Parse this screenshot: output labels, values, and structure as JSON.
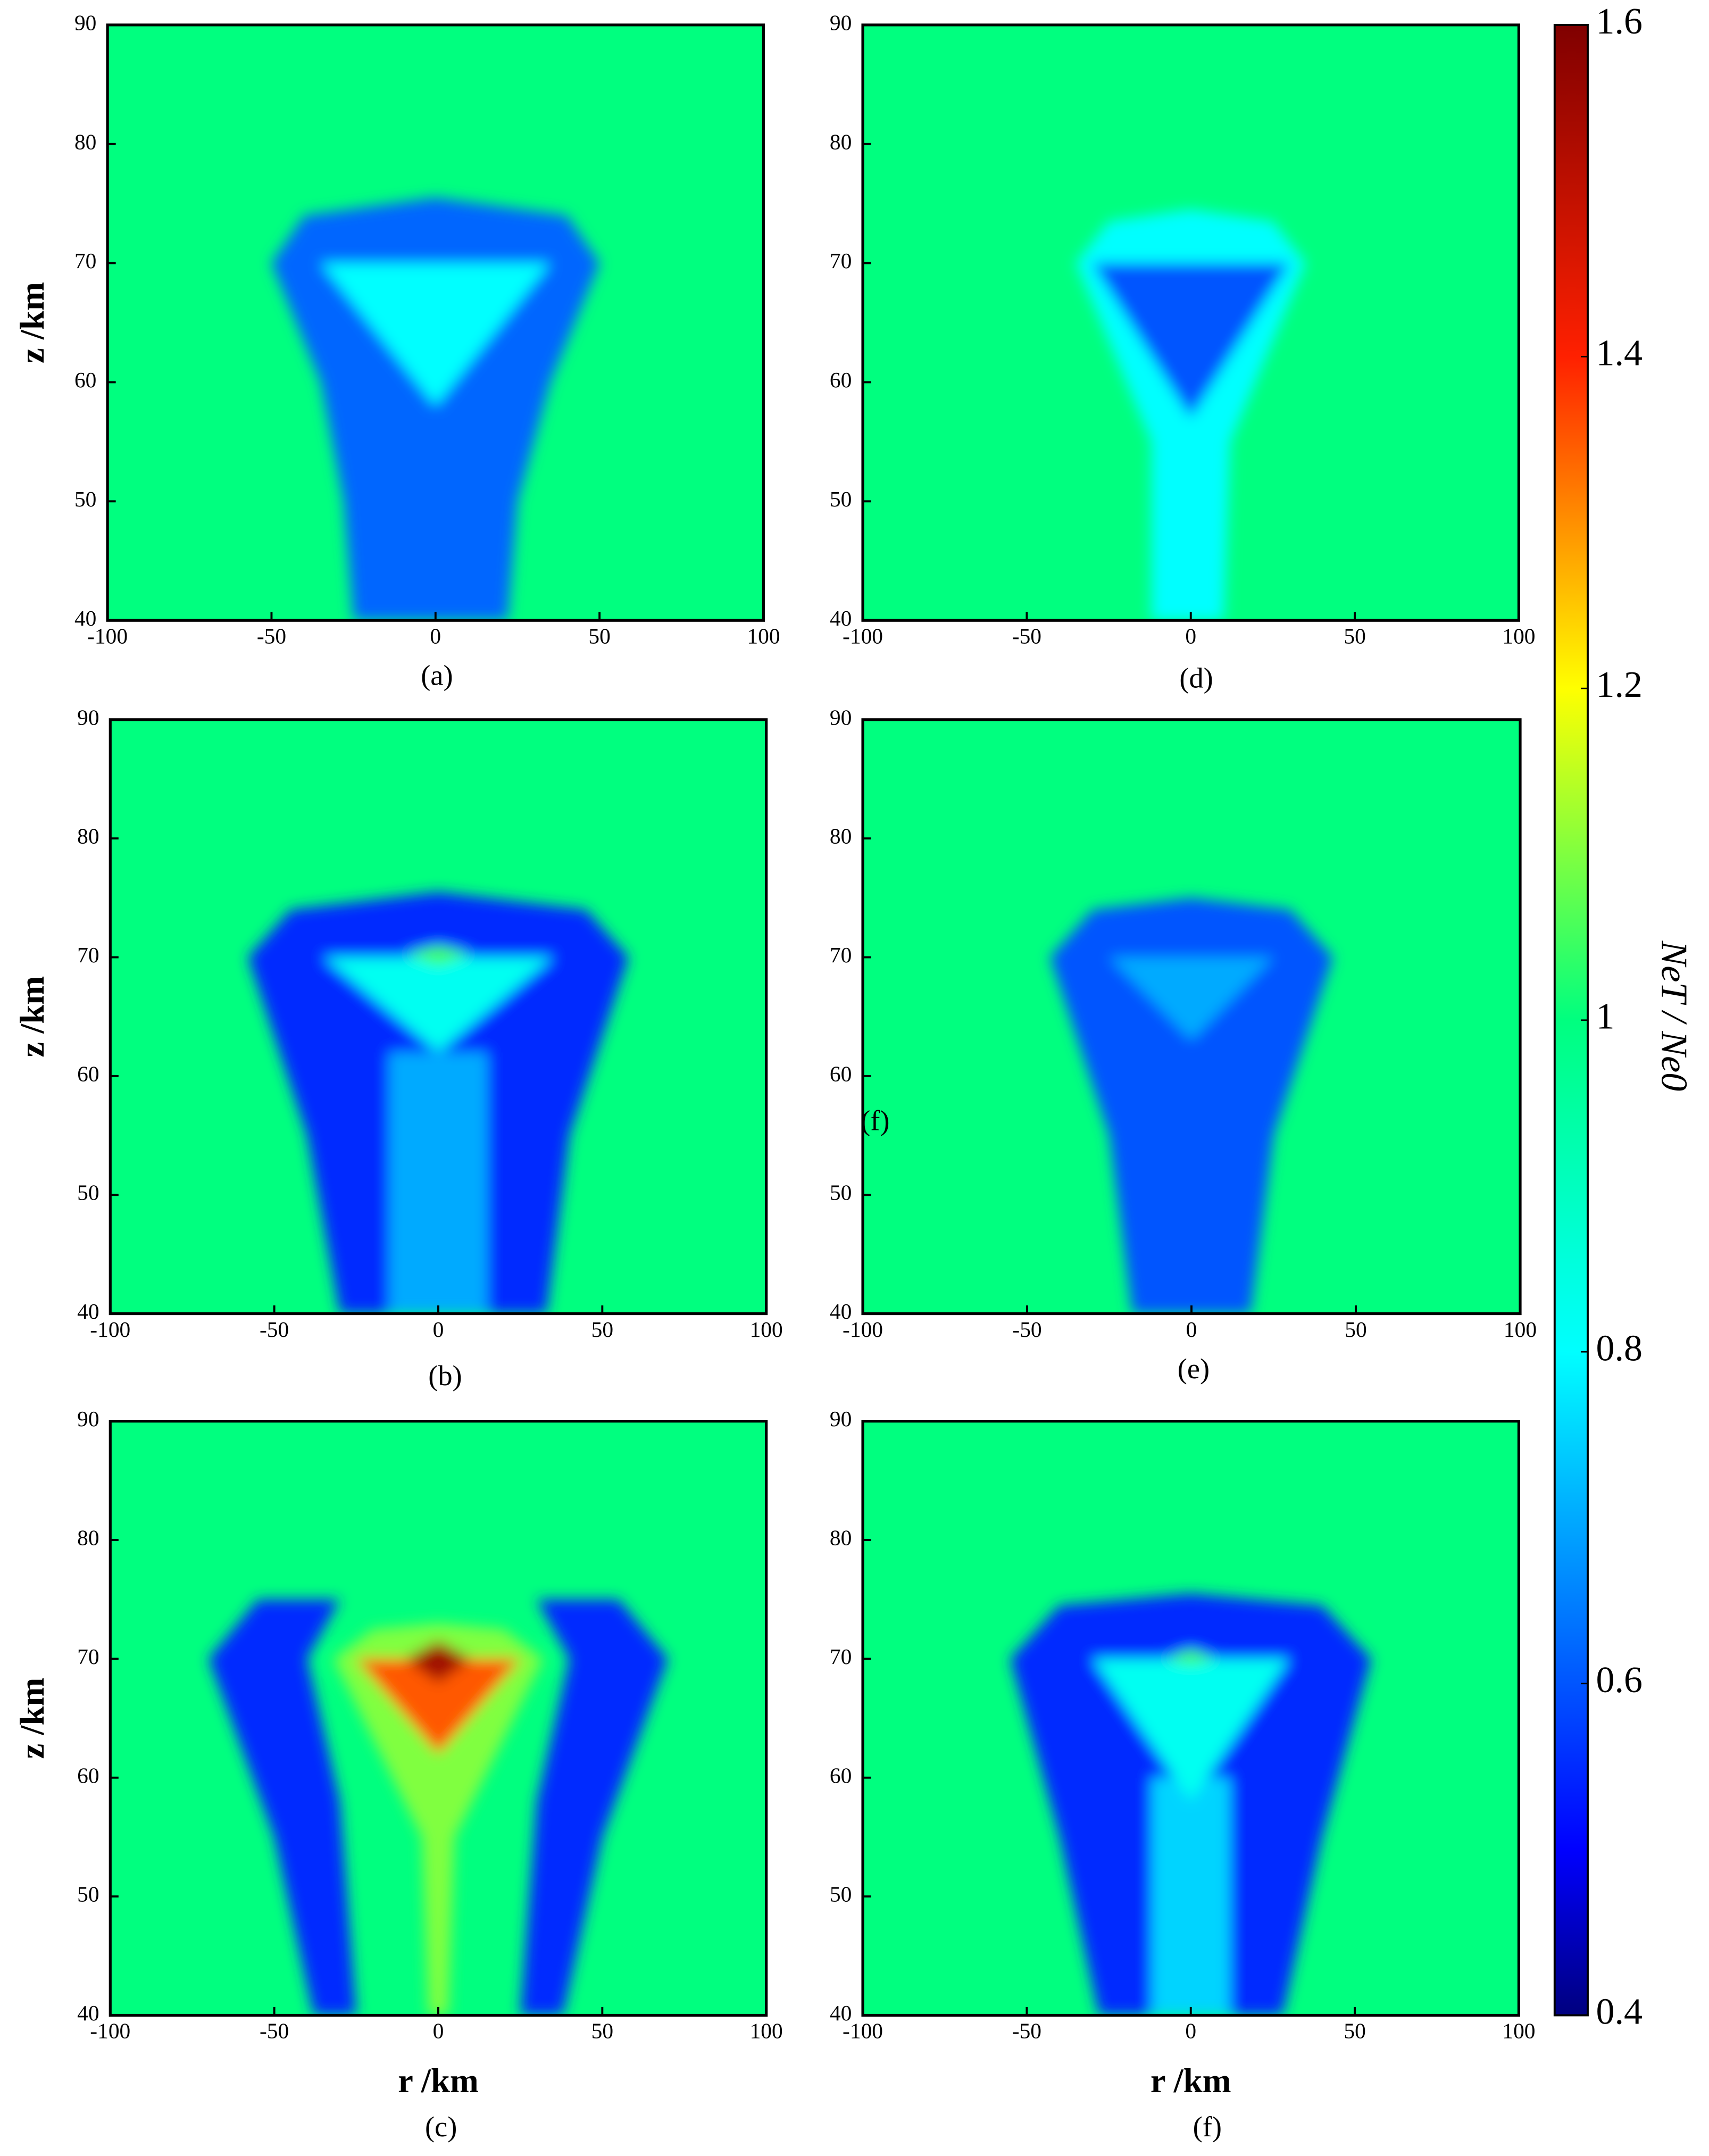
{
  "chart_data": [
    {
      "type": "heatmap",
      "caption": "(a)",
      "ylabel": "z /km",
      "xlim": [
        -100,
        100
      ],
      "ylim": [
        40,
        90
      ],
      "xticks": [
        -100,
        -50,
        0,
        50,
        100
      ],
      "yticks": [
        40,
        50,
        60,
        70,
        80,
        90
      ],
      "background": 1,
      "plumes": [
        {
          "value": 0.62,
          "r": [
            -50,
            -40,
            0,
            40,
            50,
            35,
            25,
            22,
            -25,
            -28,
            -35
          ],
          "z": [
            70,
            74,
            75.5,
            74,
            70,
            60,
            50,
            40,
            40,
            50,
            60
          ]
        },
        {
          "value": 0.8,
          "r": [
            -35,
            35,
            0
          ],
          "z": [
            70,
            70,
            58
          ]
        }
      ]
    },
    {
      "type": "heatmap",
      "caption": "(b)",
      "ylabel": "z /km",
      "xlim": [
        -100,
        100
      ],
      "ylim": [
        40,
        90
      ],
      "xticks": [
        -100,
        -50,
        0,
        50,
        100
      ],
      "yticks": [
        40,
        50,
        60,
        70,
        80,
        90
      ],
      "background": 1,
      "plumes": [
        {
          "value": 0.55,
          "r": [
            -58,
            -45,
            0,
            45,
            58,
            40,
            33,
            -30,
            -40
          ],
          "z": [
            70,
            74,
            75.5,
            74,
            70,
            55,
            40,
            40,
            55
          ]
        },
        {
          "value": 0.7,
          "r": [
            -15,
            15,
            15,
            -15
          ],
          "z": [
            62,
            62,
            40,
            40
          ]
        },
        {
          "value": 0.82,
          "r": [
            -35,
            35,
            0
          ],
          "z": [
            70,
            70,
            62
          ]
        },
        {
          "value": 1.05,
          "r": [
            -10,
            0,
            10,
            0
          ],
          "z": [
            70.3,
            71,
            70.3,
            69.3
          ]
        }
      ]
    },
    {
      "type": "heatmap",
      "caption": "(c)",
      "xlabel": "r /km",
      "ylabel": "z /km",
      "xlim": [
        -100,
        100
      ],
      "ylim": [
        40,
        90
      ],
      "xticks": [
        -100,
        -50,
        0,
        50,
        100
      ],
      "yticks": [
        40,
        50,
        60,
        70,
        80,
        90
      ],
      "background": 1,
      "plumes": [
        {
          "value": 0.55,
          "r": [
            -70,
            -55,
            -30,
            -40,
            -30,
            -25,
            -38,
            -50
          ],
          "z": [
            70,
            75,
            75,
            70,
            58,
            40,
            40,
            55
          ]
        },
        {
          "value": 0.55,
          "r": [
            70,
            55,
            30,
            40,
            30,
            25,
            38,
            50
          ],
          "z": [
            70,
            75,
            75,
            70,
            58,
            40,
            40,
            55
          ]
        },
        {
          "value": 1.1,
          "r": [
            -32,
            -20,
            0,
            20,
            32,
            5,
            3,
            -3,
            -5
          ],
          "z": [
            70,
            72.5,
            73,
            72.5,
            70,
            55,
            40,
            40,
            55
          ]
        },
        {
          "value": 1.35,
          "r": [
            -25,
            25,
            0
          ],
          "z": [
            70,
            70,
            62
          ]
        },
        {
          "value": 1.55,
          "r": [
            -10,
            0,
            10,
            0
          ],
          "z": [
            70,
            71.5,
            70,
            68
          ]
        }
      ]
    },
    {
      "type": "heatmap",
      "caption": "(d)",
      "xlim": [
        -100,
        100
      ],
      "ylim": [
        40,
        90
      ],
      "xticks": [
        -100,
        -50,
        0,
        50,
        100
      ],
      "yticks": [
        40,
        50,
        60,
        70,
        80,
        90
      ],
      "background": 1,
      "plumes": [
        {
          "value": 0.8,
          "r": [
            -35,
            -25,
            0,
            25,
            35,
            12,
            10,
            -12,
            -12
          ],
          "z": [
            70,
            73.5,
            74.5,
            73.5,
            70,
            55,
            40,
            40,
            55
          ]
        },
        {
          "value": 0.6,
          "r": [
            -30,
            30,
            0
          ],
          "z": [
            70,
            70,
            57
          ]
        }
      ]
    },
    {
      "type": "heatmap",
      "caption": "(e)",
      "annotation": "(f)",
      "xlim": [
        -100,
        100
      ],
      "ylim": [
        40,
        90
      ],
      "xticks": [
        -100,
        -50,
        0,
        50,
        100
      ],
      "yticks": [
        40,
        50,
        60,
        70,
        80,
        90
      ],
      "background": 1,
      "plumes": [
        {
          "value": 0.6,
          "r": [
            -43,
            -30,
            0,
            30,
            43,
            25,
            18,
            -18,
            -25
          ],
          "z": [
            70,
            74,
            75,
            74,
            70,
            55,
            40,
            40,
            55
          ]
        },
        {
          "value": 0.7,
          "r": [
            -25,
            25,
            0
          ],
          "z": [
            70,
            70,
            63
          ]
        }
      ]
    },
    {
      "type": "heatmap",
      "caption": "(f)",
      "xlabel": "r /km",
      "xlim": [
        -100,
        100
      ],
      "ylim": [
        40,
        90
      ],
      "xticks": [
        -100,
        -50,
        0,
        50,
        100
      ],
      "yticks": [
        40,
        50,
        60,
        70,
        80,
        90
      ],
      "background": 1,
      "plumes": [
        {
          "value": 0.55,
          "r": [
            -55,
            -40,
            0,
            40,
            55,
            40,
            28,
            -28,
            -40
          ],
          "z": [
            70,
            74.5,
            75.5,
            74.5,
            70,
            55,
            40,
            40,
            55
          ]
        },
        {
          "value": 0.75,
          "r": [
            -12,
            12,
            12,
            -12
          ],
          "z": [
            60,
            60,
            40,
            40
          ]
        },
        {
          "value": 0.82,
          "r": [
            -30,
            30,
            0
          ],
          "z": [
            70,
            70,
            58
          ]
        },
        {
          "value": 1.05,
          "r": [
            -8,
            0,
            8,
            0
          ],
          "z": [
            70,
            70.8,
            70,
            69.5
          ]
        }
      ]
    }
  ],
  "colorbar": {
    "label": "NeT / Ne0",
    "lim": [
      0.4,
      1.6
    ],
    "ticks": [
      0.4,
      0.6,
      0.8,
      1,
      1.2,
      1.4,
      1.6
    ],
    "colormap": [
      [
        0.4,
        "#00007f"
      ],
      [
        0.5,
        "#0000ff"
      ],
      [
        0.8,
        "#00ffff"
      ],
      [
        1.0,
        "#00ff7f"
      ],
      [
        1.2,
        "#ffff00"
      ],
      [
        1.4,
        "#ff2000"
      ],
      [
        1.6,
        "#800000"
      ]
    ]
  }
}
